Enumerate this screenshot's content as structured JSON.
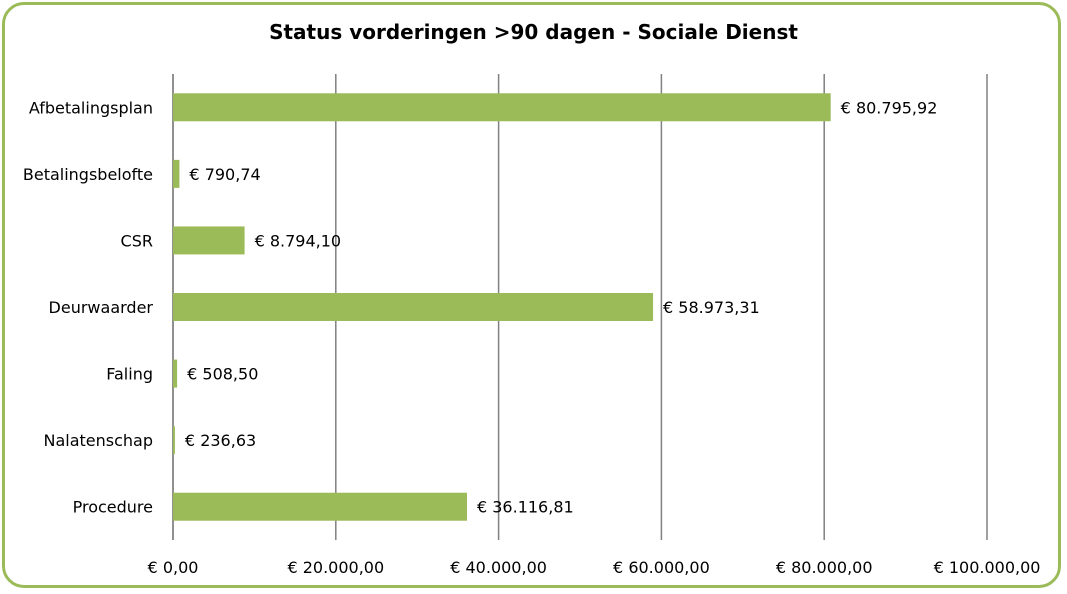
{
  "chart_data": {
    "type": "bar",
    "orientation": "horizontal",
    "title": "Status vorderingen >90 dagen - Sociale Dienst",
    "categories": [
      "Afbetalingsplan",
      "Betalingsbelofte",
      "CSR",
      "Deurwaarder",
      "Faling",
      "Nalatenschap",
      "Procedure"
    ],
    "values": [
      80795.92,
      790.74,
      8794.1,
      58973.31,
      508.5,
      236.63,
      36116.81
    ],
    "value_labels": [
      "€ 80.795,92",
      "€ 790,74",
      "€ 8.794,10",
      "€ 58.973,31",
      "€ 508,50",
      "€ 236,63",
      "€ 36.116,81"
    ],
    "xlim": [
      0,
      100000
    ],
    "x_ticks": [
      0,
      20000,
      40000,
      60000,
      80000,
      100000
    ],
    "x_tick_labels": [
      "€ 0,00",
      "€ 20.000,00",
      "€ 40.000,00",
      "€ 60.000,00",
      "€ 80.000,00",
      "€ 100.000,00"
    ],
    "xlabel": "",
    "ylabel": "",
    "grid": "vertical",
    "legend": "none",
    "bar_color": "#9bbb59",
    "frame_color": "#9bbb59",
    "gridline_color": "#808080"
  }
}
